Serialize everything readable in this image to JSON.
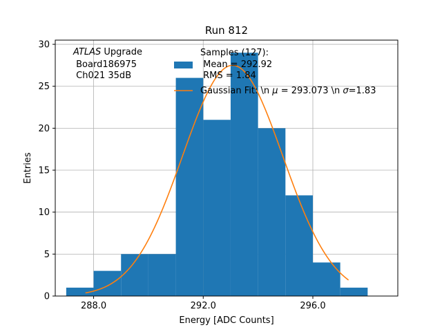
{
  "chart_data": {
    "type": "bar",
    "title": "Run 812",
    "xlabel": "Energy [ADC Counts]",
    "ylabel": "Entries",
    "xlim": [
      286.6,
      299.1
    ],
    "ylim": [
      0,
      30.5
    ],
    "xticks": [
      288,
      292,
      296
    ],
    "xtick_labels": [
      "288.0",
      "292.0",
      "296.0"
    ],
    "yticks": [
      0,
      5,
      10,
      15,
      20,
      25,
      30
    ],
    "ytick_labels": [
      "0",
      "5",
      "10",
      "15",
      "20",
      "25",
      "30"
    ],
    "grid": true,
    "bin_edges": [
      287.0,
      288.0,
      289.0,
      290.0,
      291.0,
      292.0,
      293.0,
      294.0,
      295.0,
      296.0,
      297.0,
      298.0
    ],
    "counts": [
      1,
      3,
      5,
      5,
      26,
      21,
      29,
      20,
      12,
      4,
      1
    ],
    "fit": {
      "mu": 293.073,
      "sigma": 1.83,
      "amplitude": 27.5,
      "x_range": [
        287.7,
        297.3
      ]
    },
    "annotation": {
      "line1_italic": "ATLAS",
      "line1_rest": " Upgrade",
      "line2": " Board186975",
      "line3": " Ch021 35dB"
    },
    "legend": {
      "placement": "top-right",
      "samples_label": [
        "Samples (127):",
        " Mean = 292.92",
        " RMS = 1.84"
      ],
      "fit_label_prefix": "Gaussian Fit: \\n ",
      "fit_label_mu": "μ",
      "fit_label_mid": " = 293.073 \\n ",
      "fit_label_sigma": "σ",
      "fit_label_suffix": "=1.83"
    },
    "colors": {
      "bars": "#1f77b4",
      "fit": "#ff7f0e",
      "grid": "#b0b0b0"
    }
  }
}
